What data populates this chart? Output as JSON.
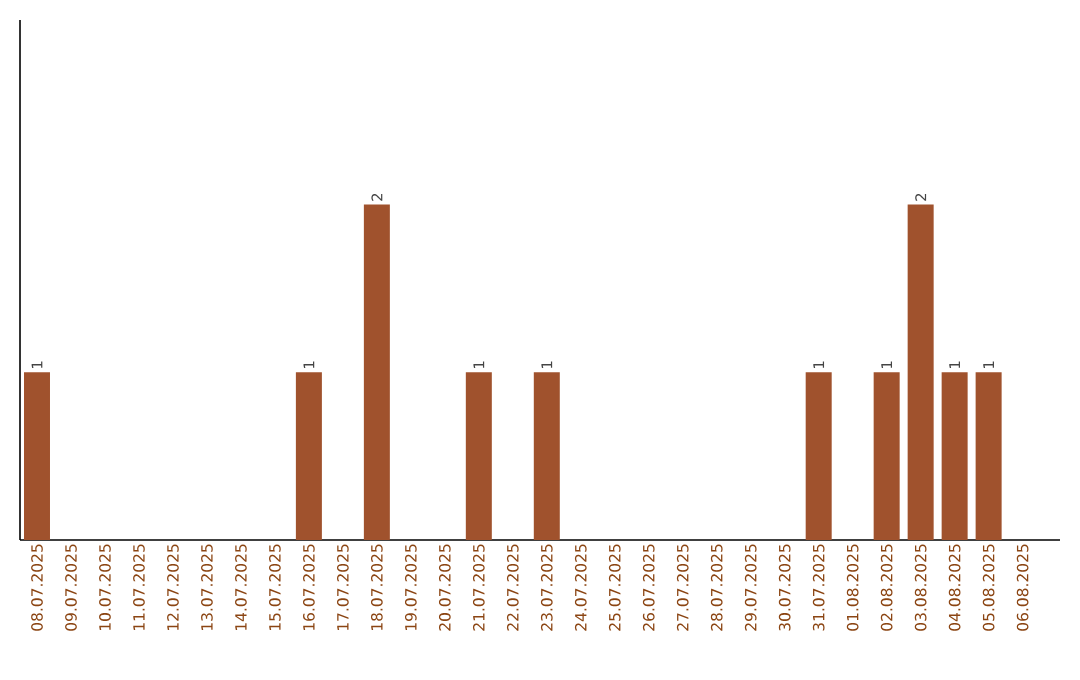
{
  "chart_data": {
    "type": "bar",
    "categories": [
      "08.07.2025",
      "09.07.2025",
      "10.07.2025",
      "11.07.2025",
      "12.07.2025",
      "13.07.2025",
      "14.07.2025",
      "15.07.2025",
      "16.07.2025",
      "17.07.2025",
      "18.07.2025",
      "19.07.2025",
      "20.07.2025",
      "21.07.2025",
      "22.07.2025",
      "23.07.2025",
      "24.07.2025",
      "25.07.2025",
      "26.07.2025",
      "27.07.2025",
      "28.07.2025",
      "29.07.2025",
      "30.07.2025",
      "31.07.2025",
      "01.08.2025",
      "02.08.2025",
      "03.08.2025",
      "04.08.2025",
      "05.08.2025",
      "06.08.2025"
    ],
    "values": [
      1,
      0,
      0,
      0,
      0,
      0,
      0,
      0,
      1,
      0,
      2,
      0,
      0,
      1,
      0,
      1,
      0,
      0,
      0,
      0,
      0,
      0,
      0,
      1,
      0,
      1,
      2,
      1,
      1,
      0
    ],
    "value_labels": [
      "1",
      null,
      null,
      null,
      null,
      null,
      null,
      null,
      "1",
      null,
      "2",
      null,
      null,
      "1",
      null,
      "1",
      null,
      null,
      null,
      null,
      null,
      null,
      null,
      "1",
      null,
      "1",
      "2",
      "1",
      "1",
      null
    ],
    "color": "#a0522d",
    "ylim": [
      0,
      3.1
    ],
    "tick_labels": "x"
  }
}
